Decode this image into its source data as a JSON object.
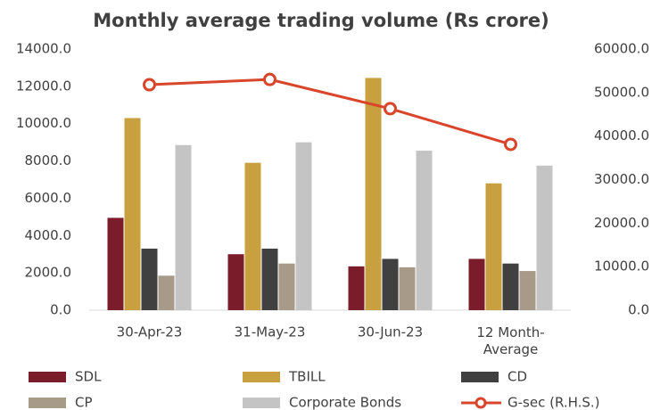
{
  "chart_data": {
    "type": "bar",
    "title": "Monthly average trading volume (Rs crore)",
    "categories": [
      "30-Apr-23",
      "31-May-23",
      "30-Jun-23",
      "12 Month-\nAverage"
    ],
    "series": [
      {
        "name": "SDL",
        "color": "#7b1c2a",
        "values": [
          4950,
          3000,
          2350,
          2750
        ]
      },
      {
        "name": "TBILL",
        "color": "#c9a03f",
        "values": [
          10300,
          7900,
          12450,
          6800
        ]
      },
      {
        "name": "CD",
        "color": "#404040",
        "values": [
          3300,
          3300,
          2750,
          2500
        ]
      },
      {
        "name": "CP",
        "color": "#a89a88",
        "values": [
          1850,
          2500,
          2300,
          2100
        ]
      },
      {
        "name": "Corporate Bonds",
        "color": "#c4c4c4",
        "values": [
          8850,
          9000,
          8550,
          7750
        ]
      },
      {
        "name": "G-sec (R.H.S.)",
        "color": "#d9452a",
        "type": "line",
        "axis": "y2",
        "values": [
          51800,
          53000,
          46300,
          38100
        ]
      }
    ],
    "ylim": [
      0,
      14000
    ],
    "yticks": [
      {
        "value": 0,
        "label": "0.0"
      },
      {
        "value": 2000,
        "label": "2000.0"
      },
      {
        "value": 4000,
        "label": "4000.0"
      },
      {
        "value": 6000,
        "label": "6000.0"
      },
      {
        "value": 8000,
        "label": "8000.0"
      },
      {
        "value": 10000,
        "label": "10000.0"
      },
      {
        "value": 12000,
        "label": "12000.0"
      },
      {
        "value": 14000,
        "label": "14000.0"
      }
    ],
    "y2lim": [
      0,
      60000
    ],
    "y2ticks": [
      {
        "value": 0,
        "label": "0.0"
      },
      {
        "value": 10000,
        "label": "10000.0"
      },
      {
        "value": 20000,
        "label": "20000.0"
      },
      {
        "value": 30000,
        "label": "30000.0"
      },
      {
        "value": 40000,
        "label": "40000.0"
      },
      {
        "value": 50000,
        "label": "50000.0"
      },
      {
        "value": 60000,
        "label": "60000.0"
      }
    ],
    "grid": false
  }
}
